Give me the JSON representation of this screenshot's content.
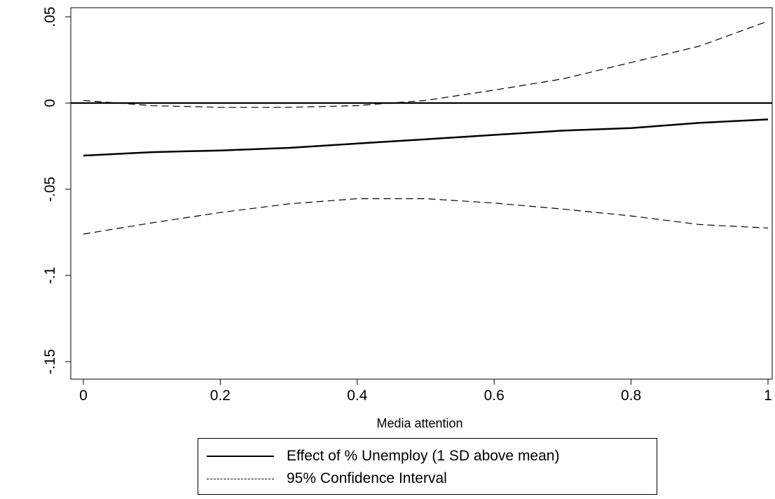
{
  "chart_data": {
    "type": "line",
    "title": "",
    "xlabel": "Media attention",
    "ylabel": "",
    "xlim": [
      0,
      1
    ],
    "ylim": [
      -0.155,
      0.055
    ],
    "x_ticks": [
      {
        "value": 0,
        "label": "0"
      },
      {
        "value": 0.2,
        "label": "0.2"
      },
      {
        "value": 0.4,
        "label": "0.4"
      },
      {
        "value": 0.6,
        "label": "0.6"
      },
      {
        "value": 0.8,
        "label": "0.8"
      },
      {
        "value": 1,
        "label": "1"
      }
    ],
    "y_ticks": [
      {
        "value": 0.05,
        "label": ".05"
      },
      {
        "value": 0,
        "label": "0"
      },
      {
        "value": -0.05,
        "label": "-.05"
      },
      {
        "value": -0.1,
        "label": "-.1"
      },
      {
        "value": -0.15,
        "label": "-.15"
      }
    ],
    "grid": false,
    "reference_line_y": 0,
    "legend_position": "bottom",
    "x": [
      0,
      0.1,
      0.2,
      0.3,
      0.4,
      0.5,
      0.6,
      0.7,
      0.8,
      0.9,
      1
    ],
    "series": [
      {
        "name": "Effect of % Unemploy (1 SD above mean)",
        "style": "solid",
        "values": [
          -0.0305,
          -0.0285,
          -0.0275,
          -0.026,
          -0.0235,
          -0.021,
          -0.0185,
          -0.016,
          -0.0145,
          -0.0115,
          -0.0095
        ]
      },
      {
        "name": "95% Confidence Interval",
        "style": "dashed",
        "values": [
          -0.076,
          -0.0695,
          -0.0635,
          -0.0585,
          -0.0555,
          -0.0555,
          -0.058,
          -0.0615,
          -0.0655,
          -0.0705,
          -0.0725
        ]
      },
      {
        "name": "95% Confidence Interval",
        "style": "dashed",
        "legend": false,
        "values": [
          0.0015,
          -0.0015,
          -0.0025,
          -0.0025,
          -0.0015,
          0.0015,
          0.0075,
          0.014,
          0.0235,
          0.033,
          0.0475
        ]
      }
    ]
  },
  "legend": {
    "items": [
      {
        "label": "Effect of % Unemploy (1 SD above mean)",
        "style": "solid"
      },
      {
        "label": "95% Confidence Interval",
        "style": "dashed"
      }
    ]
  },
  "colors": {
    "line": "#000000",
    "background": "#ffffff"
  }
}
